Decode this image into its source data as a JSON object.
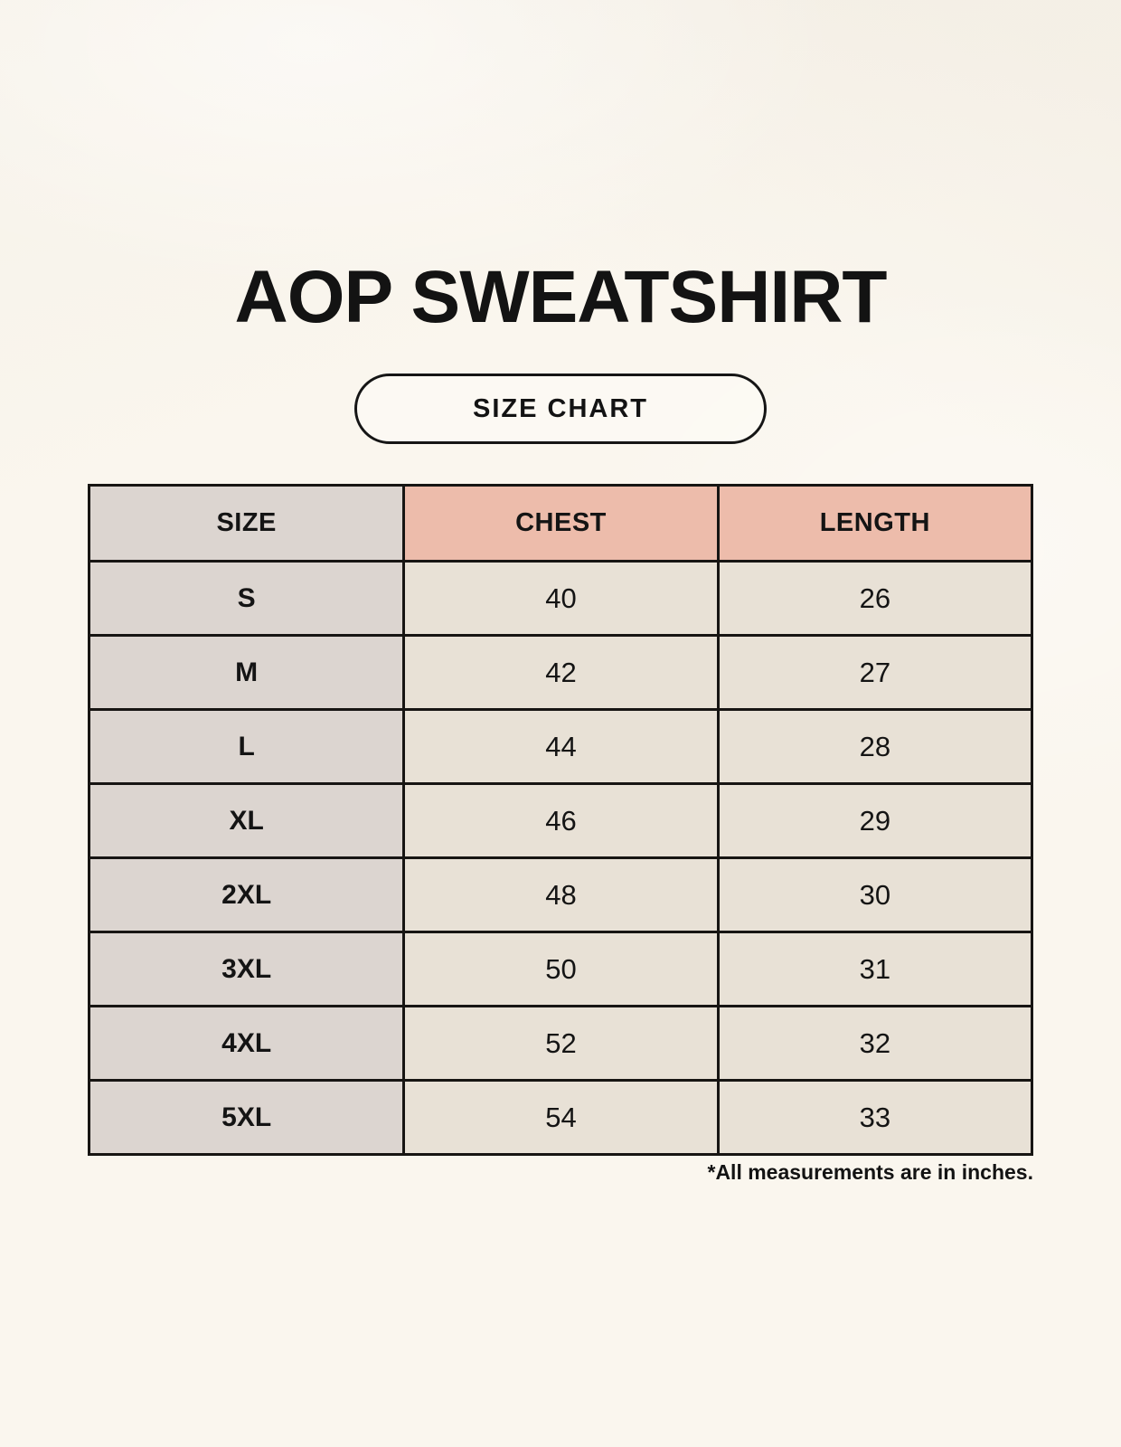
{
  "page": {
    "title": "AOP SWEATSHIRT",
    "badge_label": "SIZE CHART",
    "footnote": "*All measurements are in inches."
  },
  "colors": {
    "page_bg": "#faf6ee",
    "size_column_bg": "#dcd5d0",
    "accent_header_bg": "#edbcab",
    "value_cell_bg": "#e8e1d6",
    "table_border": "#171513",
    "text": "#141414"
  },
  "chart_data": {
    "type": "table",
    "title": "AOP SWEATSHIRT",
    "columns": [
      "SIZE",
      "CHEST",
      "LENGTH"
    ],
    "rows": [
      [
        "S",
        "40",
        "26"
      ],
      [
        "M",
        "42",
        "27"
      ],
      [
        "L",
        "44",
        "28"
      ],
      [
        "XL",
        "46",
        "29"
      ],
      [
        "2XL",
        "48",
        "30"
      ],
      [
        "3XL",
        "50",
        "31"
      ],
      [
        "4XL",
        "52",
        "32"
      ],
      [
        "5XL",
        "54",
        "33"
      ]
    ],
    "units_note": "*All measurements are in inches."
  }
}
